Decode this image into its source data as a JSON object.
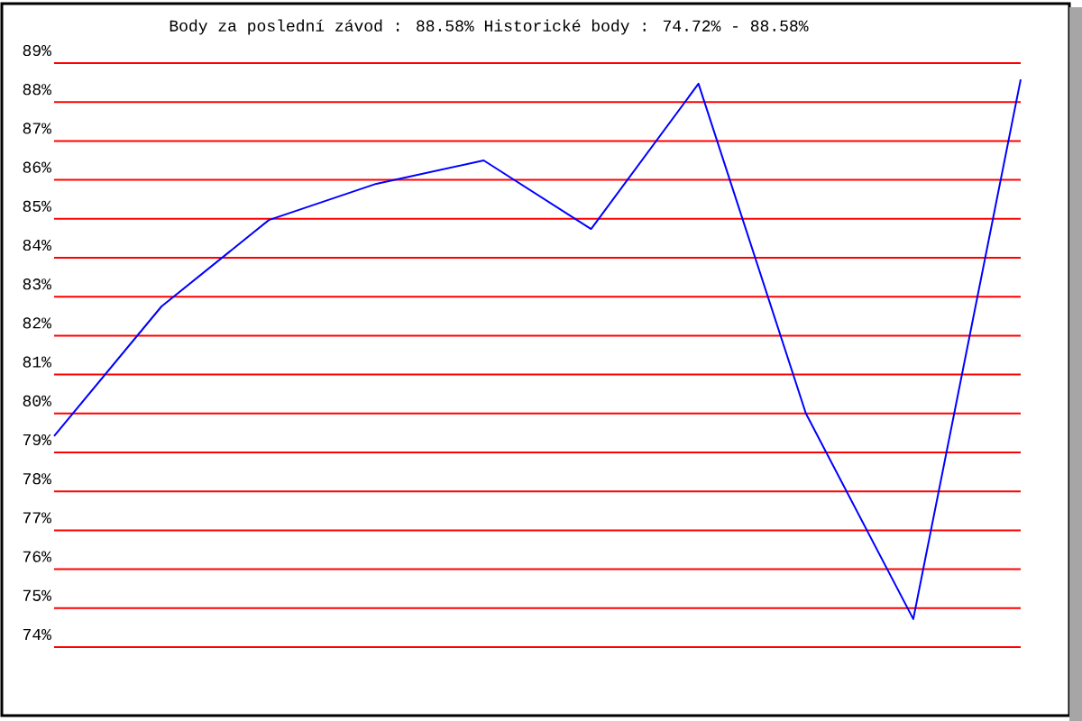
{
  "chart_data": {
    "type": "line",
    "title": "Body za poslední závod : 88.58%  Historické body : 74.72% - 88.58%",
    "categories": [
      null,
      null,
      null,
      null,
      null,
      null,
      null,
      null,
      null,
      null
    ],
    "values": [
      79.42,
      82.75,
      84.97,
      85.9,
      86.5,
      84.74,
      88.47,
      80.0,
      74.72,
      88.58
    ],
    "color": "#0000ff",
    "ylim": [
      74,
      89
    ],
    "yticks": [
      {
        "value": 74,
        "label": "74%"
      },
      {
        "value": 75,
        "label": "75%"
      },
      {
        "value": 76,
        "label": "76%"
      },
      {
        "value": 77,
        "label": "77%"
      },
      {
        "value": 78,
        "label": "78%"
      },
      {
        "value": 79,
        "label": "79%"
      },
      {
        "value": 80,
        "label": "80%"
      },
      {
        "value": 81,
        "label": "81%"
      },
      {
        "value": 82,
        "label": "82%"
      },
      {
        "value": 83,
        "label": "83%"
      },
      {
        "value": 84,
        "label": "84%"
      },
      {
        "value": 85,
        "label": "85%"
      },
      {
        "value": 86,
        "label": "86%"
      },
      {
        "value": 87,
        "label": "87%"
      },
      {
        "value": 88,
        "label": "88%"
      },
      {
        "value": 89,
        "label": "89%"
      }
    ],
    "grid": "y",
    "tick_labels": "y"
  }
}
